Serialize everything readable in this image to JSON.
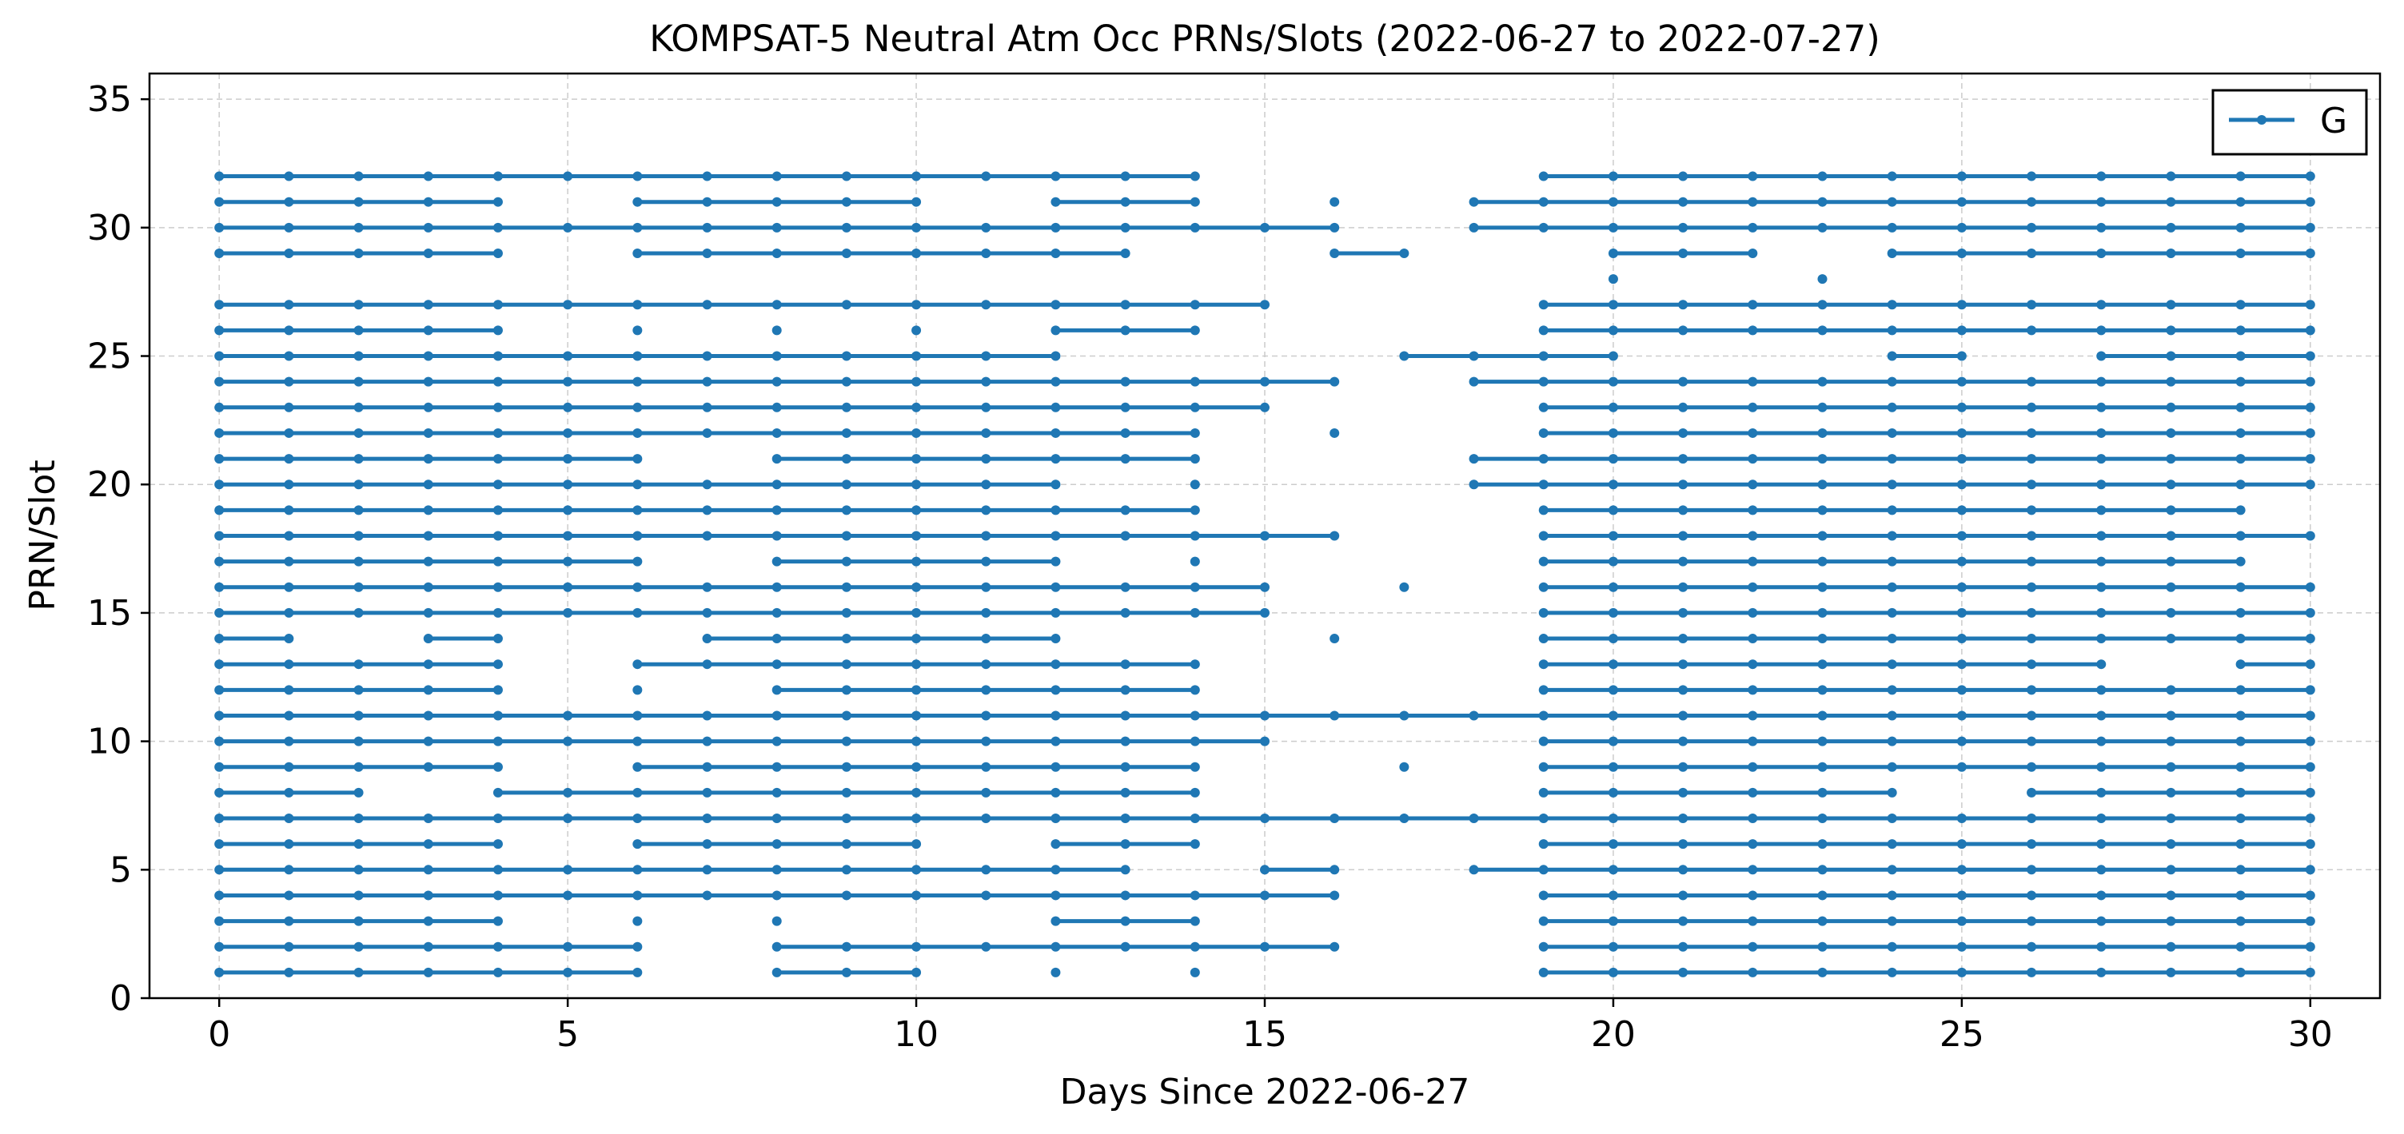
{
  "chart_data": {
    "type": "line",
    "title": "KOMPSAT-5 Neutral Atm Occ PRNs/Slots (2022-06-27 to 2022-07-27)",
    "xlabel": "Days Since 2022-06-27",
    "ylabel": "PRN/Slot",
    "xlim": [
      -1,
      31
    ],
    "ylim": [
      0,
      36
    ],
    "xticks": [
      0,
      5,
      10,
      15,
      20,
      25,
      30
    ],
    "yticks": [
      0,
      5,
      10,
      15,
      20,
      25,
      30,
      35
    ],
    "grid": true,
    "legend": {
      "position": "top-right",
      "entries": [
        "G"
      ]
    },
    "series_color": "#1f77b4",
    "series": [
      {
        "name": "G",
        "prn": 1,
        "days": [
          0,
          1,
          2,
          3,
          4,
          5,
          6,
          8,
          9,
          10,
          12,
          14,
          19,
          20,
          21,
          22,
          23,
          24,
          25,
          26,
          27,
          28,
          29,
          30
        ]
      },
      {
        "name": "G",
        "prn": 2,
        "days": [
          0,
          1,
          2,
          3,
          4,
          5,
          6,
          8,
          9,
          10,
          11,
          12,
          13,
          14,
          15,
          16,
          19,
          20,
          21,
          22,
          23,
          24,
          25,
          26,
          27,
          28,
          29,
          30
        ]
      },
      {
        "name": "G",
        "prn": 3,
        "days": [
          0,
          1,
          2,
          3,
          4,
          6,
          8,
          12,
          13,
          14,
          19,
          20,
          21,
          22,
          23,
          24,
          25,
          26,
          27,
          28,
          29,
          30
        ]
      },
      {
        "name": "G",
        "prn": 4,
        "days": [
          0,
          1,
          2,
          3,
          4,
          5,
          6,
          7,
          8,
          9,
          10,
          11,
          12,
          13,
          14,
          15,
          16,
          19,
          20,
          21,
          22,
          23,
          24,
          25,
          26,
          27,
          28,
          29,
          30
        ]
      },
      {
        "name": "G",
        "prn": 5,
        "days": [
          0,
          1,
          2,
          3,
          4,
          5,
          6,
          7,
          8,
          9,
          10,
          11,
          12,
          13,
          15,
          16,
          18,
          19,
          20,
          21,
          22,
          23,
          24,
          25,
          26,
          27,
          28,
          29,
          30
        ]
      },
      {
        "name": "G",
        "prn": 6,
        "days": [
          0,
          1,
          2,
          3,
          4,
          6,
          7,
          8,
          9,
          10,
          12,
          13,
          14,
          19,
          20,
          21,
          22,
          23,
          24,
          25,
          26,
          27,
          28,
          29,
          30
        ]
      },
      {
        "name": "G",
        "prn": 7,
        "days": [
          0,
          1,
          2,
          3,
          4,
          5,
          6,
          7,
          8,
          9,
          10,
          11,
          12,
          13,
          14,
          15,
          16,
          17,
          18,
          19,
          20,
          21,
          22,
          23,
          24,
          25,
          26,
          27,
          28,
          29,
          30
        ]
      },
      {
        "name": "G",
        "prn": 8,
        "days": [
          0,
          1,
          2,
          4,
          5,
          6,
          7,
          8,
          9,
          10,
          11,
          12,
          13,
          14,
          19,
          20,
          21,
          22,
          23,
          24,
          26,
          27,
          28,
          29,
          30
        ]
      },
      {
        "name": "G",
        "prn": 9,
        "days": [
          0,
          1,
          2,
          3,
          4,
          6,
          7,
          8,
          9,
          10,
          11,
          12,
          13,
          14,
          17,
          19,
          20,
          21,
          22,
          23,
          24,
          25,
          26,
          27,
          28,
          29,
          30
        ]
      },
      {
        "name": "G",
        "prn": 10,
        "days": [
          0,
          1,
          2,
          3,
          4,
          5,
          6,
          7,
          8,
          9,
          10,
          11,
          12,
          13,
          14,
          15,
          19,
          20,
          21,
          22,
          23,
          24,
          25,
          26,
          27,
          28,
          29,
          30
        ]
      },
      {
        "name": "G",
        "prn": 11,
        "days": [
          0,
          1,
          2,
          3,
          4,
          5,
          6,
          7,
          8,
          9,
          10,
          11,
          12,
          13,
          14,
          15,
          16,
          17,
          18,
          19,
          20,
          21,
          22,
          23,
          24,
          25,
          26,
          27,
          28,
          29,
          30
        ]
      },
      {
        "name": "G",
        "prn": 12,
        "days": [
          0,
          1,
          2,
          3,
          4,
          6,
          8,
          9,
          10,
          11,
          12,
          13,
          14,
          19,
          20,
          21,
          22,
          23,
          24,
          25,
          26,
          27,
          28,
          29,
          30
        ]
      },
      {
        "name": "G",
        "prn": 13,
        "days": [
          0,
          1,
          2,
          3,
          4,
          6,
          7,
          8,
          9,
          10,
          11,
          12,
          13,
          14,
          19,
          20,
          21,
          22,
          23,
          24,
          25,
          26,
          27,
          29,
          30
        ]
      },
      {
        "name": "G",
        "prn": 14,
        "days": [
          0,
          1,
          3,
          4,
          7,
          8,
          9,
          10,
          11,
          12,
          16,
          19,
          20,
          21,
          22,
          23,
          24,
          25,
          26,
          27,
          28,
          29,
          30
        ]
      },
      {
        "name": "G",
        "prn": 15,
        "days": [
          0,
          1,
          2,
          3,
          4,
          5,
          6,
          7,
          8,
          9,
          10,
          11,
          12,
          13,
          14,
          15,
          19,
          20,
          21,
          22,
          23,
          24,
          25,
          26,
          27,
          28,
          29,
          30
        ]
      },
      {
        "name": "G",
        "prn": 16,
        "days": [
          0,
          1,
          2,
          3,
          4,
          5,
          6,
          7,
          8,
          9,
          10,
          11,
          12,
          13,
          14,
          15,
          17,
          19,
          20,
          21,
          22,
          23,
          24,
          25,
          26,
          27,
          28,
          29,
          30
        ]
      },
      {
        "name": "G",
        "prn": 17,
        "days": [
          0,
          1,
          2,
          3,
          4,
          5,
          6,
          8,
          9,
          10,
          11,
          12,
          14,
          19,
          20,
          21,
          22,
          23,
          24,
          25,
          26,
          27,
          28,
          29
        ]
      },
      {
        "name": "G",
        "prn": 18,
        "days": [
          0,
          1,
          2,
          3,
          4,
          5,
          6,
          7,
          8,
          9,
          10,
          11,
          12,
          13,
          14,
          15,
          16,
          19,
          20,
          21,
          22,
          23,
          24,
          25,
          26,
          27,
          28,
          29,
          30
        ]
      },
      {
        "name": "G",
        "prn": 19,
        "days": [
          0,
          1,
          2,
          3,
          4,
          5,
          6,
          7,
          8,
          9,
          10,
          11,
          12,
          13,
          14,
          19,
          20,
          21,
          22,
          23,
          24,
          25,
          26,
          27,
          28,
          29
        ]
      },
      {
        "name": "G",
        "prn": 20,
        "days": [
          0,
          1,
          2,
          3,
          4,
          5,
          6,
          7,
          8,
          9,
          10,
          11,
          12,
          14,
          18,
          19,
          20,
          21,
          22,
          23,
          24,
          25,
          26,
          27,
          28,
          29,
          30
        ]
      },
      {
        "name": "G",
        "prn": 21,
        "days": [
          0,
          1,
          2,
          3,
          4,
          5,
          6,
          8,
          9,
          10,
          11,
          12,
          13,
          14,
          18,
          19,
          20,
          21,
          22,
          23,
          24,
          25,
          26,
          27,
          28,
          29,
          30
        ]
      },
      {
        "name": "G",
        "prn": 22,
        "days": [
          0,
          1,
          2,
          3,
          4,
          5,
          6,
          7,
          8,
          9,
          10,
          11,
          12,
          13,
          14,
          16,
          19,
          20,
          21,
          22,
          23,
          24,
          25,
          26,
          27,
          28,
          29,
          30
        ]
      },
      {
        "name": "G",
        "prn": 23,
        "days": [
          0,
          1,
          2,
          3,
          4,
          5,
          6,
          7,
          8,
          9,
          10,
          11,
          12,
          13,
          14,
          15,
          19,
          20,
          21,
          22,
          23,
          24,
          25,
          26,
          27,
          28,
          29,
          30
        ]
      },
      {
        "name": "G",
        "prn": 24,
        "days": [
          0,
          1,
          2,
          3,
          4,
          5,
          6,
          7,
          8,
          9,
          10,
          11,
          12,
          13,
          14,
          15,
          16,
          18,
          19,
          20,
          21,
          22,
          23,
          24,
          25,
          26,
          27,
          28,
          29,
          30
        ]
      },
      {
        "name": "G",
        "prn": 25,
        "days": [
          0,
          1,
          2,
          3,
          4,
          5,
          6,
          7,
          8,
          9,
          10,
          11,
          12,
          17,
          18,
          19,
          20,
          24,
          25,
          27,
          28,
          29,
          30
        ]
      },
      {
        "name": "G",
        "prn": 26,
        "days": [
          0,
          1,
          2,
          3,
          4,
          6,
          8,
          10,
          12,
          13,
          14,
          19,
          20,
          21,
          22,
          23,
          24,
          25,
          26,
          27,
          28,
          29,
          30
        ]
      },
      {
        "name": "G",
        "prn": 27,
        "days": [
          0,
          1,
          2,
          3,
          4,
          5,
          6,
          7,
          8,
          9,
          10,
          11,
          12,
          13,
          14,
          15,
          19,
          20,
          21,
          22,
          23,
          24,
          25,
          26,
          27,
          28,
          29,
          30
        ]
      },
      {
        "name": "G",
        "prn": 28,
        "days": [
          20,
          23
        ]
      },
      {
        "name": "G",
        "prn": 29,
        "days": [
          0,
          1,
          2,
          3,
          4,
          6,
          7,
          8,
          9,
          10,
          11,
          12,
          13,
          16,
          17,
          20,
          21,
          22,
          24,
          25,
          26,
          27,
          28,
          29,
          30
        ]
      },
      {
        "name": "G",
        "prn": 30,
        "days": [
          0,
          1,
          2,
          3,
          4,
          5,
          6,
          7,
          8,
          9,
          10,
          11,
          12,
          13,
          14,
          15,
          16,
          18,
          19,
          20,
          21,
          22,
          23,
          24,
          25,
          26,
          27,
          28,
          29,
          30
        ]
      },
      {
        "name": "G",
        "prn": 31,
        "days": [
          0,
          1,
          2,
          3,
          4,
          6,
          7,
          8,
          9,
          10,
          12,
          13,
          14,
          16,
          18,
          19,
          20,
          21,
          22,
          23,
          24,
          25,
          26,
          27,
          28,
          29,
          30
        ]
      },
      {
        "name": "G",
        "prn": 32,
        "days": [
          0,
          1,
          2,
          3,
          4,
          5,
          6,
          7,
          8,
          9,
          10,
          11,
          12,
          13,
          14,
          19,
          20,
          21,
          22,
          23,
          24,
          25,
          26,
          27,
          28,
          29,
          30
        ]
      }
    ]
  }
}
